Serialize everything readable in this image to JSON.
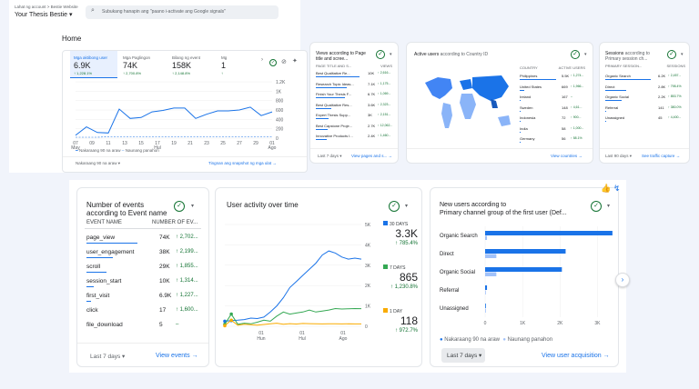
{
  "header": {
    "breadcrumb": "Lahat ng account > Bestie Website",
    "property": "Your Thesis Bestie",
    "search_placeholder": "Subukang hanapin ang \"paano i-activate ang Google signals\""
  },
  "home": {
    "title": "Home",
    "metrics": [
      {
        "label": "Mga aktibong user",
        "value": "6.9K",
        "change": "↑ 1,228.1%"
      },
      {
        "label": "Mga Paglingon",
        "value": "74K",
        "change": "↑ 2,700.8%"
      },
      {
        "label": "Bilang ng event",
        "value": "158K",
        "change": "↑ 2,148.8%"
      },
      {
        "label": "Mg",
        "value": "1",
        "change": "↑"
      }
    ],
    "y_ticks": [
      "1.2K",
      "1K",
      "800",
      "600",
      "400",
      "200",
      "0"
    ],
    "x_ticks": [
      "07\nMay",
      "09",
      "11",
      "13",
      "15",
      "17\nHul",
      "19",
      "21",
      "23",
      "25",
      "27",
      "29",
      "01\nAgo"
    ],
    "legend_current": "Nakaraang 90 na araw",
    "legend_prev": "Naunang panahon",
    "date_range": "Nakaraang 90 na araw",
    "footer_link": "Tingnan ang snapshot ng mga ulat"
  },
  "views_card": {
    "title": "Views according to Page title and scree...",
    "col1": "PAGE TITLE AND S...",
    "col2": "VIEWS",
    "rows": [
      {
        "name": "Best Qualitative Re...",
        "v": "10K",
        "c": "↑ 2,616..."
      },
      {
        "name": "Research Topic Ideas...",
        "v": "7.1K",
        "c": "↑ 1,175..."
      },
      {
        "name": "Finish Your Thesis F...",
        "v": "6.7K",
        "c": "↑ 1,069..."
      },
      {
        "name": "Best Qualitative Res...",
        "v": "3.6K",
        "c": "↑ 2,323..."
      },
      {
        "name": "Expert Thesis Supp...",
        "v": "3K",
        "c": "↑ 2,151..."
      },
      {
        "name": "Best Capstone Proje...",
        "v": "2.7K",
        "c": "↑ 12,062..."
      },
      {
        "name": "Innovative Products I...",
        "v": "2.4K",
        "c": "↑ 1,460..."
      }
    ],
    "date_range": "Last 7 days",
    "footer_link": "View pages and s..."
  },
  "country_card": {
    "title": "Active users",
    "title_suffix": "according to Country ID",
    "col1": "COUNTRY",
    "col2": "ACTIVE USERS",
    "rows": [
      {
        "name": "Philippines",
        "v": "5.5K",
        "c": "↑ 1,274..."
      },
      {
        "name": "United States",
        "v": "669",
        "c": "↑ 1,966..."
      },
      {
        "name": "Ireland",
        "v": "167",
        "c": "–"
      },
      {
        "name": "Sweden",
        "v": "148",
        "c": "↑ 4,61..."
      },
      {
        "name": "Indonesia",
        "v": "72",
        "c": "↑ 900..."
      },
      {
        "name": "India",
        "v": "58",
        "c": "↑ 1,000..."
      },
      {
        "name": "Germany",
        "v": "56",
        "c": "↑ 58.1%"
      }
    ],
    "footer_link": "View countries"
  },
  "sessions_card": {
    "title": "Sessions",
    "title_suffix": "according to Primary session ch...",
    "col1": "PRIMARY SESSION...",
    "col2": "SESSIONS",
    "rows": [
      {
        "name": "Organic Search",
        "v": "6.2K",
        "c": "↑ 2,457..."
      },
      {
        "name": "Direct",
        "v": "2.8K",
        "c": "↑ 798.4%"
      },
      {
        "name": "Organic Social",
        "v": "2.2K",
        "c": "↑ 853.7%"
      },
      {
        "name": "Referral",
        "v": "141",
        "c": "↑ 380.0%"
      },
      {
        "name": "Unassigned",
        "v": "45",
        "c": "↑ 4,400..."
      }
    ],
    "date_range": "Last 90 days",
    "footer_link": "See traffic capture"
  },
  "events_card": {
    "title_line1": "Number of events",
    "title_line2": "according to Event name",
    "col1": "EVENT NAME",
    "col2": "NUMBER OF EV...",
    "rows": [
      {
        "name": "page_view",
        "v": "74K",
        "c": "↑ 2,702...",
        "bar": 1
      },
      {
        "name": "user_engagement",
        "v": "38K",
        "c": "↑ 2,199...",
        "bar": 0.51
      },
      {
        "name": "scroll",
        "v": "29K",
        "c": "↑ 1,855...",
        "bar": 0.39
      },
      {
        "name": "session_start",
        "v": "10K",
        "c": "↑ 1,314...",
        "bar": 0.14
      },
      {
        "name": "first_visit",
        "v": "6.9K",
        "c": "↑ 1,227...",
        "bar": 0.09
      },
      {
        "name": "click",
        "v": "17",
        "c": "↑ 1,600...",
        "bar": 0
      },
      {
        "name": "file_download",
        "v": "5",
        "c": "–",
        "bar": 0
      }
    ],
    "date_range": "Last 7 days",
    "footer_link": "View events"
  },
  "activity_card": {
    "title": "User activity over time",
    "y_ticks": [
      "5K",
      "4K",
      "3K",
      "2K",
      "1K",
      "0"
    ],
    "x_ticks": [
      "01\nHun",
      "01\nHul",
      "01\nAgo"
    ],
    "legend": [
      {
        "label": "30 DAYS",
        "value": "3.3K",
        "change": "↑ 785.4%",
        "color": "#1a73e8"
      },
      {
        "label": "7 DAYS",
        "value": "865",
        "change": "↑ 1,230.8%",
        "color": "#34a853"
      },
      {
        "label": "1 DAY",
        "value": "118",
        "change": "↑ 972.7%",
        "color": "#f9ab00"
      }
    ]
  },
  "newusers_card": {
    "title_line1": "New users according to",
    "title_line2": "Primary channel group of the first user (Def...",
    "categories": [
      "Organic Search",
      "Direct",
      "Organic Social",
      "Referral",
      "Unassigned"
    ],
    "x_ticks": [
      "0",
      "1K",
      "2K",
      "3K"
    ],
    "legend_current": "Nakaraang 90 na araw",
    "legend_prev": "Naunang panahon",
    "date_range": "Last 7 days",
    "footer_link": "View user acquisition"
  },
  "chart_data": [
    {
      "type": "line",
      "series": [
        {
          "name": "Nakaraang 90 na araw",
          "values": [
            60,
            240,
            120,
            110,
            620,
            420,
            440,
            560,
            590,
            640,
            640,
            420,
            510,
            580,
            580,
            600,
            660,
            480,
            560
          ]
        },
        {
          "name": "Naunang panahon",
          "values": [
            20,
            20,
            20,
            30,
            30,
            30,
            30,
            30,
            30,
            30,
            30,
            30,
            30,
            30,
            30,
            30,
            30,
            30,
            30
          ]
        }
      ],
      "ylim": [
        0,
        1200
      ]
    },
    {
      "type": "line",
      "series": [
        {
          "name": "30 DAYS",
          "values": [
            250,
            280,
            300,
            330,
            400,
            380,
            450,
            700,
            1000,
            1400,
            1900,
            2200,
            2500,
            2800,
            3100,
            3500,
            3700,
            3600,
            3400,
            3300,
            3350,
            3300
          ]
        },
        {
          "name": "7 DAYS",
          "values": [
            100,
            600,
            100,
            150,
            120,
            200,
            300,
            250,
            500,
            700,
            600,
            650,
            700,
            800,
            700,
            750,
            800,
            870,
            850,
            860,
            870,
            865
          ]
        },
        {
          "name": "1 DAY",
          "values": [
            30,
            300,
            50,
            100,
            80,
            60,
            90,
            120,
            150,
            100,
            130,
            110,
            140,
            130,
            120,
            115,
            125,
            120,
            118,
            122,
            115,
            118
          ]
        }
      ],
      "ylim": [
        0,
        5000
      ]
    },
    {
      "type": "bar",
      "categories": [
        "Organic Search",
        "Direct",
        "Organic Social",
        "Referral",
        "Unassigned"
      ],
      "series": [
        {
          "name": "Nakaraang 90 na araw",
          "values": [
            3400,
            2150,
            2050,
            50,
            20
          ]
        },
        {
          "name": "Naunang panahon",
          "values": [
            50,
            300,
            300,
            5,
            3
          ]
        }
      ],
      "xlim": [
        0,
        3500
      ]
    }
  ]
}
